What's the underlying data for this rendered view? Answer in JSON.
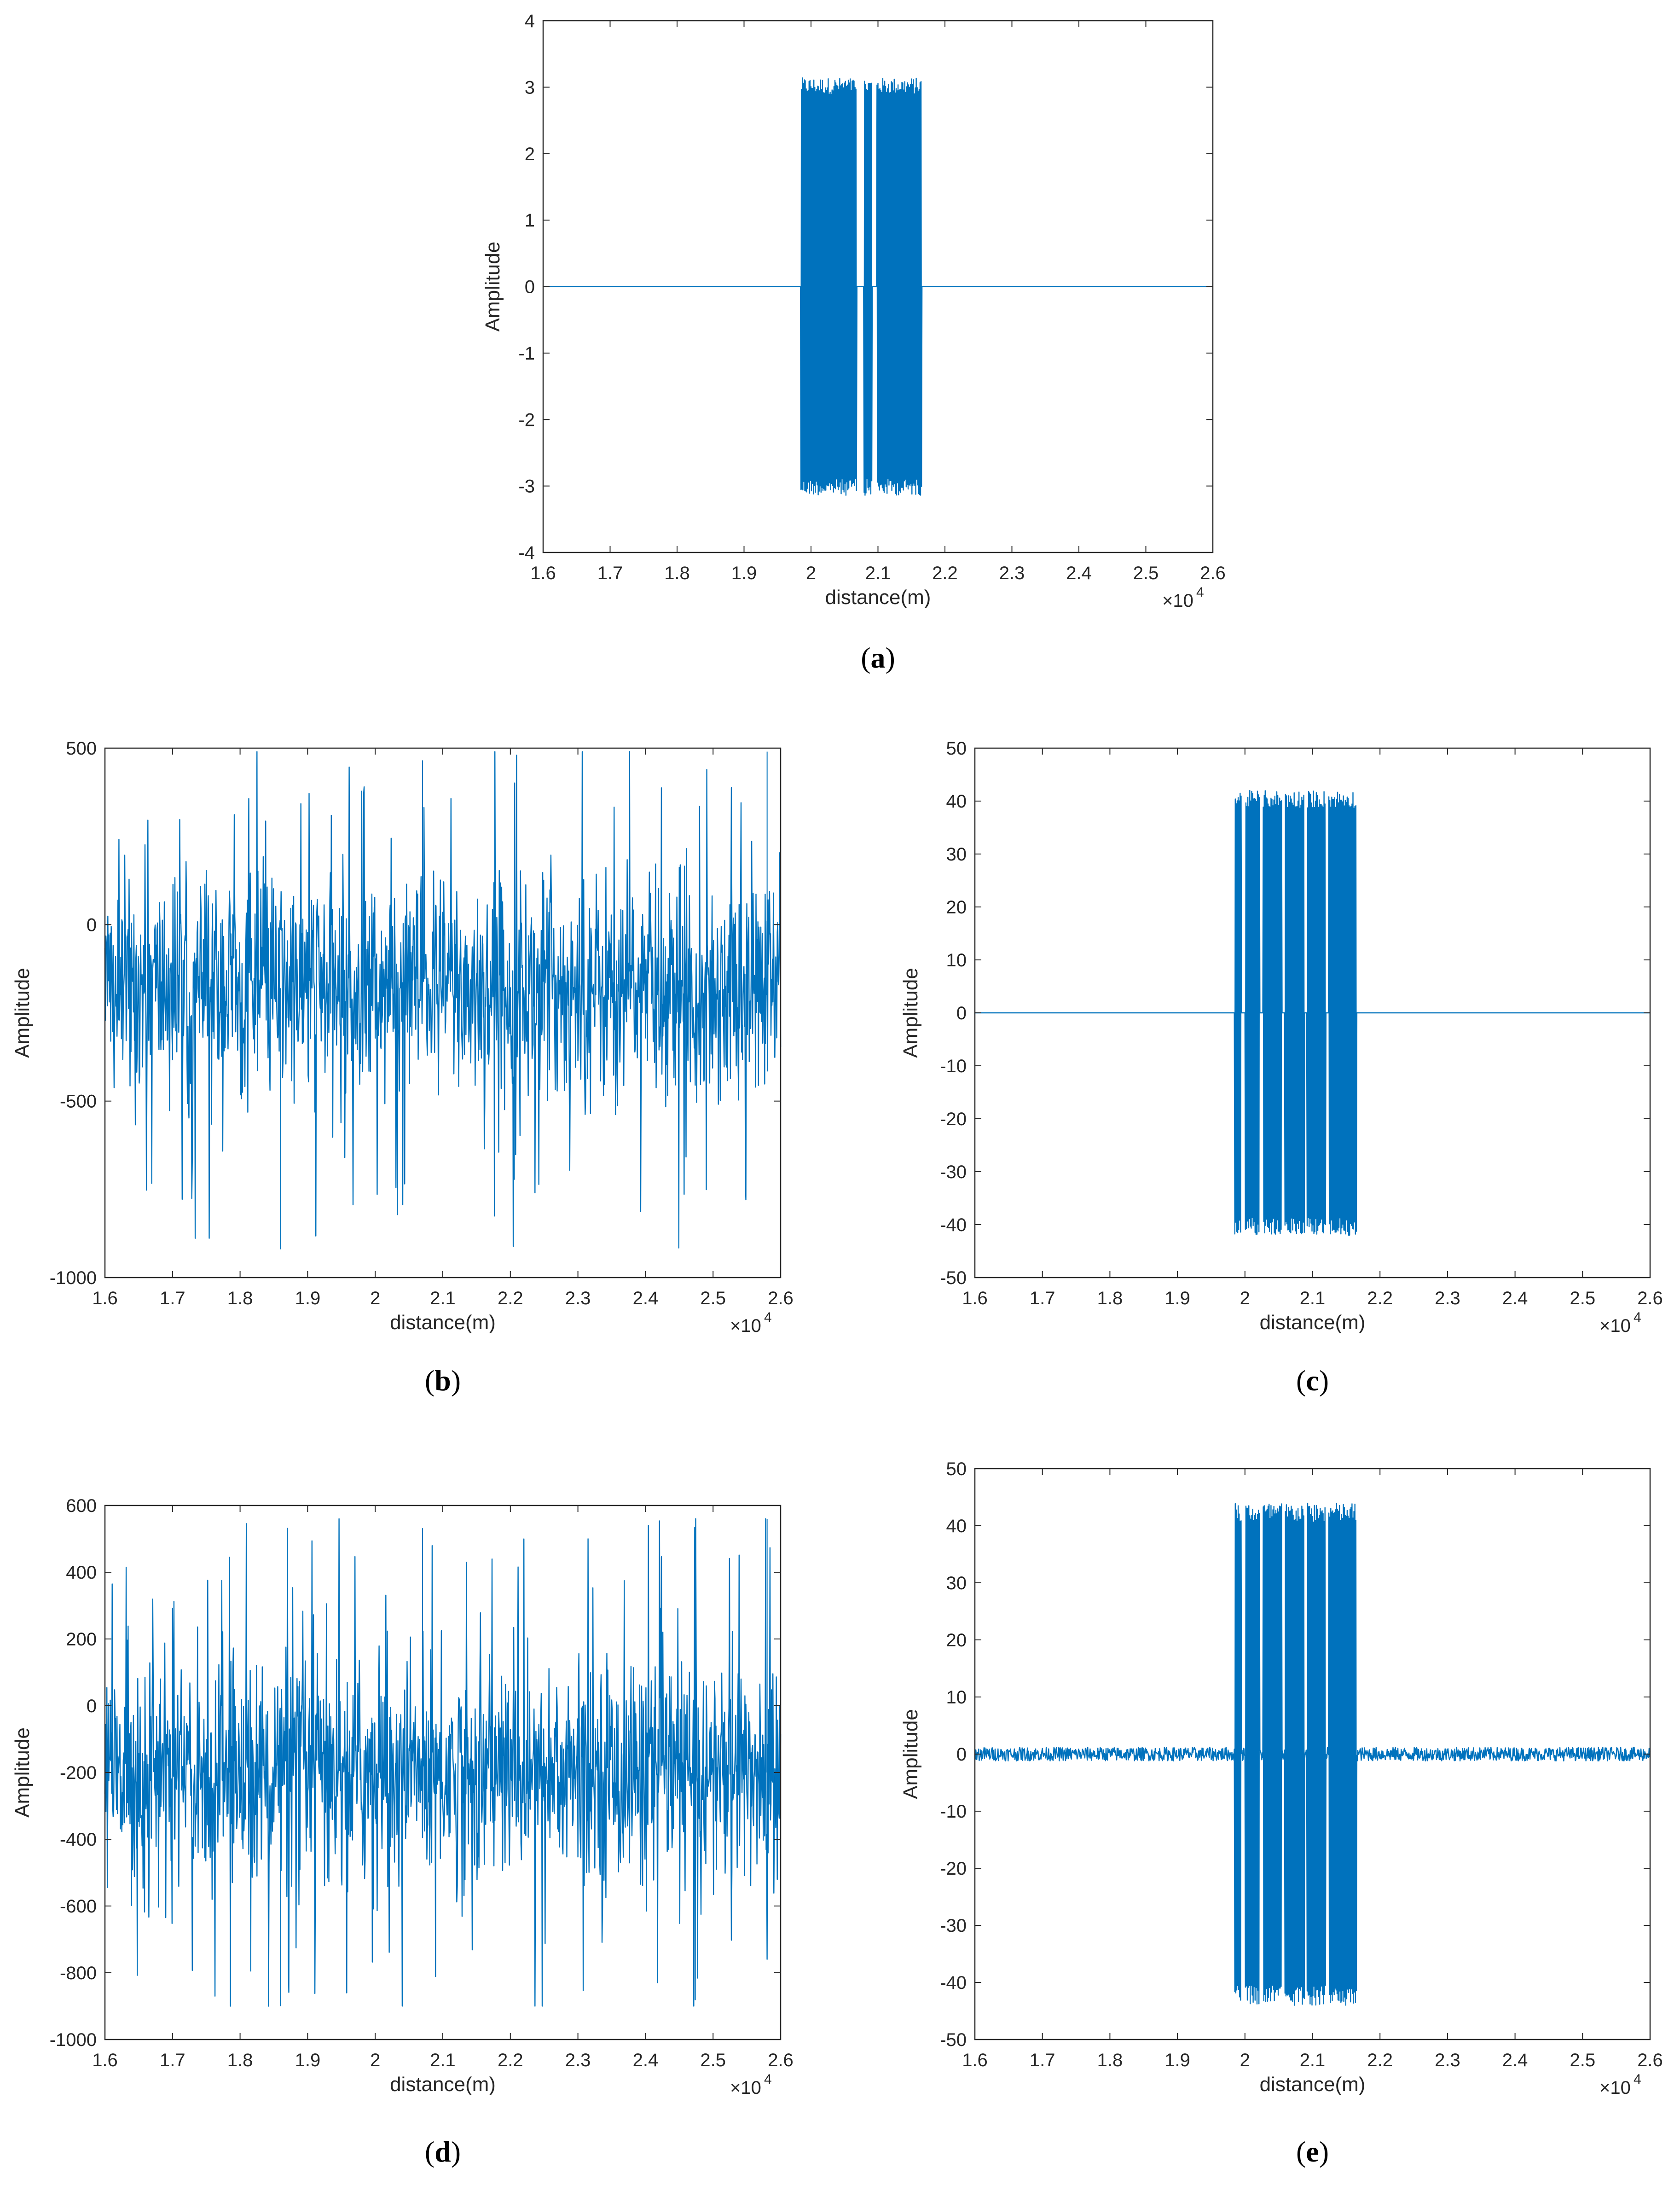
{
  "figure": {
    "line_color": "#0072BD",
    "axes_color": "#262626"
  },
  "chart_data": [
    {
      "panel": "a",
      "caption_letter": "a",
      "type": "line",
      "xlabel": "distance(m)",
      "ylabel": "Amplitude",
      "x_exponent_label": "×10",
      "x_exponent": "4",
      "xlim": [
        1.6,
        2.6
      ],
      "ylim": [
        -4,
        4
      ],
      "xticks": [
        "1.6",
        "1.7",
        "1.8",
        "1.9",
        "2",
        "2.1",
        "2.2",
        "2.3",
        "2.4",
        "2.5",
        "2.6"
      ],
      "yticks": [
        "-4",
        "-3",
        "-2",
        "-1",
        "0",
        "1",
        "2",
        "3",
        "4"
      ],
      "series": [
        {
          "signal": {
            "x_start": 1.985,
            "x_end": 2.165,
            "amplitude": 3.14,
            "gaps": [
              [
                2.068,
                2.079
              ],
              [
                2.091,
                2.098
              ]
            ]
          },
          "baseline": 0,
          "noise_amplitude": 0
        }
      ]
    },
    {
      "panel": "b",
      "caption_letter": "b",
      "type": "line",
      "xlabel": "distance(m)",
      "ylabel": "Amplitude",
      "x_exponent_label": "×10",
      "x_exponent": "4",
      "xlim": [
        1.6,
        2.6
      ],
      "ylim": [
        -1000,
        500
      ],
      "xticks": [
        "1.6",
        "1.7",
        "1.8",
        "1.9",
        "2",
        "2.1",
        "2.2",
        "2.3",
        "2.4",
        "2.5",
        "2.6"
      ],
      "yticks": [
        "-1000",
        "-500",
        "0",
        "500"
      ],
      "series": [
        {
          "noise_center": -180,
          "noise_typical": [
            -520,
            150
          ],
          "noise_extremes": [
            -920,
            490
          ]
        }
      ]
    },
    {
      "panel": "c",
      "caption_letter": "c",
      "type": "line",
      "xlabel": "distance(m)",
      "ylabel": "Amplitude",
      "x_exponent_label": "×10",
      "x_exponent": "4",
      "xlim": [
        1.6,
        2.6
      ],
      "ylim": [
        -50,
        50
      ],
      "xticks": [
        "1.6",
        "1.7",
        "1.8",
        "1.9",
        "2",
        "2.1",
        "2.2",
        "2.3",
        "2.4",
        "2.5",
        "2.6"
      ],
      "yticks": [
        "-50",
        "-40",
        "-30",
        "-20",
        "-10",
        "0",
        "10",
        "20",
        "30",
        "40",
        "50"
      ],
      "series": [
        {
          "signal": {
            "x_start": 1.985,
            "x_end": 2.165,
            "amplitude": 42,
            "gaps": [
              [
                1.995,
                2.0
              ],
              [
                2.022,
                2.027
              ],
              [
                2.055,
                2.059
              ],
              [
                2.088,
                2.092
              ],
              [
                2.12,
                2.124
              ]
            ]
          },
          "baseline": 0,
          "noise_amplitude": 0
        }
      ]
    },
    {
      "panel": "d",
      "caption_letter": "d",
      "type": "line",
      "xlabel": "distance(m)",
      "ylabel": "Amplitude",
      "x_exponent_label": "×10",
      "x_exponent": "4",
      "xlim": [
        1.6,
        2.6
      ],
      "ylim": [
        -1000,
        600
      ],
      "xticks": [
        "1.6",
        "1.7",
        "1.8",
        "1.9",
        "2",
        "2.1",
        "2.2",
        "2.3",
        "2.4",
        "2.5",
        "2.6"
      ],
      "yticks": [
        "-1000",
        "-800",
        "-600",
        "-400",
        "-200",
        "0",
        "200",
        "400",
        "600"
      ],
      "series": [
        {
          "noise_center": -200,
          "noise_typical": [
            -560,
            150
          ],
          "noise_extremes": [
            -900,
            560
          ]
        }
      ]
    },
    {
      "panel": "e",
      "caption_letter": "e",
      "type": "line",
      "xlabel": "distance(m)",
      "ylabel": "Amplitude",
      "x_exponent_label": "×10",
      "x_exponent": "4",
      "xlim": [
        1.6,
        2.6
      ],
      "ylim": [
        -50,
        50
      ],
      "xticks": [
        "1.6",
        "1.7",
        "1.8",
        "1.9",
        "2",
        "2.1",
        "2.2",
        "2.3",
        "2.4",
        "2.5",
        "2.6"
      ],
      "yticks": [
        "-50",
        "-40",
        "-30",
        "-20",
        "-10",
        "0",
        "10",
        "20",
        "30",
        "40",
        "50"
      ],
      "series": [
        {
          "signal": {
            "x_start": 1.985,
            "x_end": 2.165,
            "amplitude": 44,
            "gaps": [
              [
                1.995,
                2.0
              ],
              [
                2.022,
                2.027
              ],
              [
                2.055,
                2.059
              ],
              [
                2.088,
                2.092
              ],
              [
                2.12,
                2.124
              ]
            ]
          },
          "baseline": 0,
          "noise_amplitude": 1.2
        }
      ]
    }
  ]
}
